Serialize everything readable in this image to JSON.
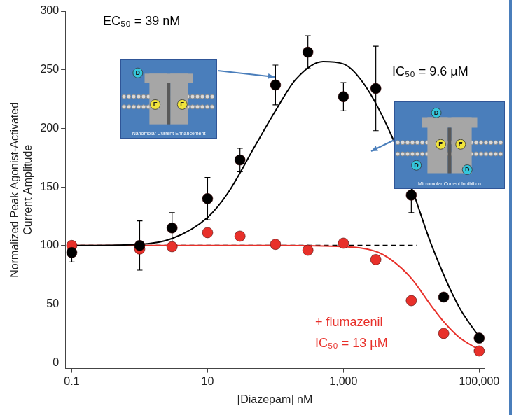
{
  "chart_data": {
    "type": "scatter",
    "x_label": "[Diazepam] nM",
    "y_label": [
      "Normalized Peak Agonist-Activated",
      "Current Amplitude"
    ],
    "log": "x",
    "grid": false,
    "xlim": [
      0.08,
      120000
    ],
    "xticks": [
      0.1,
      10,
      {
        "value": 1000,
        "label": "1,000"
      },
      {
        "value": 100000,
        "label": "100,000"
      }
    ],
    "ylim": [
      -5,
      300
    ],
    "yticks": [
      0,
      50,
      100,
      150,
      200,
      250,
      300
    ],
    "series": [
      {
        "type": "scatter",
        "color": "#000000",
        "marker": "circle",
        "x": [
          0.1,
          1,
          3,
          10,
          30,
          100,
          300,
          1000,
          3000,
          10000,
          30000,
          100000
        ],
        "values": [
          94,
          100,
          115,
          140,
          173,
          237,
          265,
          227,
          234,
          143,
          56,
          21
        ],
        "errors": [
          8,
          21,
          13,
          18,
          10,
          17,
          14,
          12,
          36,
          15,
          3,
          3
        ]
      },
      {
        "type": "scatter",
        "color": "#e8302a",
        "marker": "circle",
        "x": [
          0.1,
          1,
          3,
          10,
          30,
          100,
          300,
          1000,
          3000,
          10000,
          30000,
          100000
        ],
        "values": [
          100,
          97,
          99,
          111,
          108,
          101,
          96,
          102,
          88,
          53,
          25,
          10
        ]
      },
      {
        "type": "line",
        "color": "#000000",
        "line_style": "solid",
        "x": [
          0.1,
          1,
          3,
          10,
          20,
          50,
          100,
          200,
          500,
          1000,
          2000,
          5000,
          10000,
          20000,
          50000,
          100000
        ],
        "values": [
          100,
          101,
          106,
          124,
          145,
          185,
          215,
          242,
          257,
          255,
          238,
          195,
          150,
          100,
          48,
          22
        ]
      },
      {
        "type": "line",
        "color": "#e8302a",
        "line_style": "solid",
        "x": [
          0.1,
          100,
          1000,
          3000,
          5000,
          10000,
          20000,
          30000,
          50000,
          100000
        ],
        "values": [
          100,
          100,
          99,
          95,
          88,
          72,
          48,
          35,
          22,
          11
        ]
      },
      {
        "type": "line",
        "color": "#000000",
        "line_style": "dashed",
        "x": [
          0.1,
          12000
        ],
        "values": [
          100,
          100
        ]
      }
    ],
    "annotations": [
      {
        "text": "EC₅₀ = 39 nM",
        "color": "#000000"
      },
      {
        "text": "IC₅₀ = 9.6 µM",
        "color": "#000000"
      },
      {
        "text": "+ flumazenil",
        "color": "#e8302a"
      },
      {
        "text": "IC₅₀ = 13 µM",
        "color": "#e8302a"
      }
    ],
    "insets": [
      {
        "caption": "Nanomolar Current Enhancement",
        "labels": [
          "D",
          "E",
          "E"
        ]
      },
      {
        "caption": "Micromolar Current Inhibition",
        "labels": [
          "D",
          "E",
          "E",
          "D",
          "D"
        ]
      }
    ]
  }
}
